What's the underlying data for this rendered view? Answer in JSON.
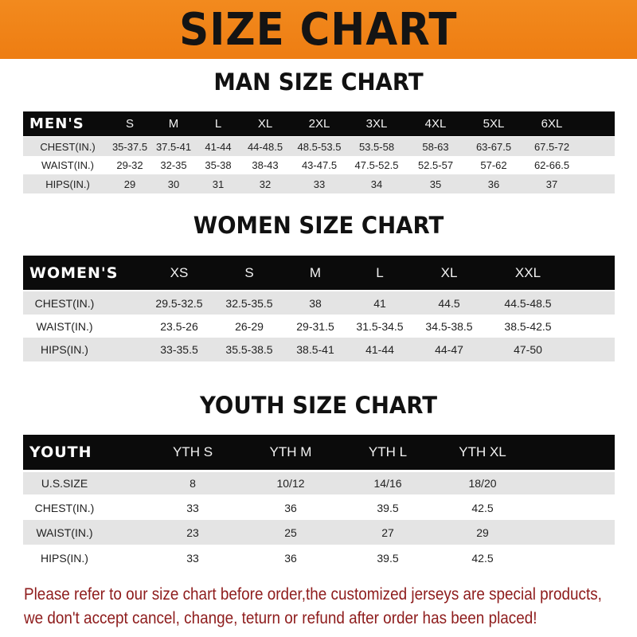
{
  "title": "SIZE CHART",
  "sections": [
    {
      "title": "MAN SIZE CHART",
      "header": [
        "MEN'S",
        "S",
        "M",
        "L",
        "XL",
        "2XL",
        "3XL",
        "4XL",
        "5XL",
        "6XL"
      ],
      "rows": [
        [
          "CHEST(IN.)",
          "35-37.5",
          "37.5-41",
          "41-44",
          "44-48.5",
          "48.5-53.5",
          "53.5-58",
          "58-63",
          "63-67.5",
          "67.5-72"
        ],
        [
          "WAIST(IN.)",
          "29-32",
          "32-35",
          "35-38",
          "38-43",
          "43-47.5",
          "47.5-52.5",
          "52.5-57",
          "57-62",
          "62-66.5"
        ],
        [
          "HIPS(IN.)",
          "29",
          "30",
          "31",
          "32",
          "33",
          "34",
          "35",
          "36",
          "37"
        ]
      ]
    },
    {
      "title": "WOMEN SIZE CHART",
      "header": [
        "WOMEN'S",
        "XS",
        "S",
        "M",
        "L",
        "XL",
        "XXL"
      ],
      "rows": [
        [
          "CHEST(IN.)",
          "29.5-32.5",
          "32.5-35.5",
          "38",
          "41",
          "44.5",
          "44.5-48.5"
        ],
        [
          "WAIST(IN.)",
          "23.5-26",
          "26-29",
          "29-31.5",
          "31.5-34.5",
          "34.5-38.5",
          "38.5-42.5"
        ],
        [
          "HIPS(IN.)",
          "33-35.5",
          "35.5-38.5",
          "38.5-41",
          "41-44",
          "44-47",
          "47-50"
        ]
      ]
    },
    {
      "title": "YOUTH SIZE CHART",
      "header": [
        "YOUTH",
        "YTH S",
        "YTH M",
        "YTH L",
        "YTH XL"
      ],
      "rows": [
        [
          "U.S.SIZE",
          "8",
          "10/12",
          "14/16",
          "18/20"
        ],
        [
          "CHEST(IN.)",
          "33",
          "36",
          "39.5",
          "42.5"
        ],
        [
          "WAIST(IN.)",
          "23",
          "25",
          "27",
          "29"
        ],
        [
          "HIPS(IN.)",
          "33",
          "36",
          "39.5",
          "42.5"
        ]
      ]
    }
  ],
  "notice": [
    "Please refer to our size chart before order,the customized jerseys are special products,",
    "we don't accept cancel, change, teturn or refund after order has been placed!"
  ],
  "colors": {
    "banner": "#f0821a",
    "header_row": "#0b0b0b",
    "stripe": "#e4e4e4",
    "notice": "#8e1c1c"
  }
}
